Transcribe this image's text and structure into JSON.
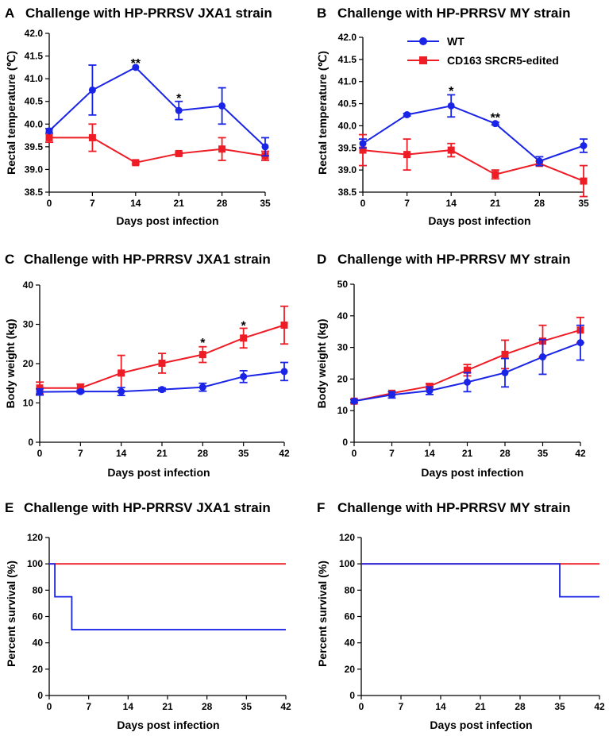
{
  "legend": [
    {
      "name": "WT",
      "color": "#1a24e6",
      "marker": "circle"
    },
    {
      "name": "CD163 SRCR5-edited",
      "color": "#ee1c25",
      "marker": "square"
    }
  ],
  "chart_data": [
    {
      "id": "A",
      "letter": "A",
      "type": "line",
      "title": "Challenge with HP-PRRSV JXA1 strain",
      "xlabel": "Days post infection",
      "ylabel": "Rectal temperature (℃)",
      "x": [
        0,
        7,
        14,
        21,
        28,
        35
      ],
      "xticks": [
        0,
        7,
        14,
        21,
        28,
        35
      ],
      "yticks": [
        38.5,
        39.0,
        39.5,
        40.0,
        40.5,
        41.0,
        41.5,
        42.0
      ],
      "ytick_labels": [
        "38.5",
        "39.0",
        "39.5",
        "40.0",
        "40.5",
        "41.0",
        "41.5",
        "42.0"
      ],
      "xlim": [
        0,
        35
      ],
      "ylim": [
        38.5,
        42.0
      ],
      "series": [
        {
          "name": "WT",
          "values": [
            39.85,
            40.75,
            41.25,
            40.3,
            40.4,
            39.5
          ],
          "errors": [
            0.05,
            0.55,
            0.0,
            0.2,
            0.4,
            0.2
          ]
        },
        {
          "name": "CD163 SRCR5-edited",
          "values": [
            39.7,
            39.7,
            39.15,
            39.35,
            39.45,
            39.3
          ],
          "errors": [
            0.1,
            0.3,
            0.03,
            0.03,
            0.25,
            0.1
          ]
        }
      ],
      "annotations": [
        {
          "x": 14,
          "y": 41.35,
          "text": "**"
        },
        {
          "x": 21,
          "y": 40.58,
          "text": "*"
        }
      ]
    },
    {
      "id": "B",
      "letter": "B",
      "type": "line",
      "title": "Challenge with HP-PRRSV MY strain",
      "xlabel": "Days post infection",
      "ylabel": "Rectal temperature (℃)",
      "x": [
        0,
        7,
        14,
        21,
        28,
        35
      ],
      "xticks": [
        0,
        7,
        14,
        21,
        28,
        35
      ],
      "yticks": [
        38.5,
        39.0,
        39.5,
        40.0,
        40.5,
        41.0,
        41.5,
        42.0
      ],
      "ytick_labels": [
        "38.5",
        "39.0",
        "39.5",
        "40.0",
        "40.5",
        "41.0",
        "41.5",
        "42.0"
      ],
      "xlim": [
        0,
        35
      ],
      "ylim": [
        38.5,
        42.0
      ],
      "series": [
        {
          "name": "WT",
          "values": [
            39.6,
            40.25,
            40.45,
            40.05,
            39.2,
            39.55
          ],
          "errors": [
            0.1,
            0.03,
            0.25,
            0.03,
            0.1,
            0.15
          ]
        },
        {
          "name": "CD163 SRCR5-edited",
          "values": [
            39.45,
            39.35,
            39.45,
            38.9,
            39.15,
            38.75
          ],
          "errors": [
            0.35,
            0.35,
            0.15,
            0.1,
            0.05,
            0.35
          ]
        }
      ],
      "annotations": [
        {
          "x": 14,
          "y": 40.8,
          "text": "*"
        },
        {
          "x": 21,
          "y": 40.2,
          "text": "**"
        }
      ]
    },
    {
      "id": "C",
      "letter": "C",
      "type": "line",
      "title": "Challenge with HP-PRRSV JXA1 strain",
      "xlabel": "Days post infection",
      "ylabel": "Body weight (kg)",
      "x": [
        0,
        7,
        14,
        21,
        28,
        35,
        42
      ],
      "xticks": [
        0,
        7,
        14,
        21,
        28,
        35,
        42
      ],
      "yticks": [
        0,
        10,
        20,
        30,
        40
      ],
      "ytick_labels": [
        "0",
        "10",
        "20",
        "30",
        "40"
      ],
      "xlim": [
        0,
        42
      ],
      "ylim": [
        0,
        40
      ],
      "series": [
        {
          "name": "WT",
          "values": [
            12.8,
            12.9,
            12.9,
            13.4,
            14.0,
            16.7,
            18.0
          ],
          "errors": [
            0.8,
            0.3,
            1.0,
            0.4,
            1.0,
            1.5,
            2.3
          ]
        },
        {
          "name": "CD163 SRCR5-edited",
          "values": [
            13.8,
            13.8,
            17.6,
            20.1,
            22.3,
            26.5,
            29.8
          ],
          "errors": [
            1.5,
            1.0,
            4.5,
            2.5,
            2.0,
            2.5,
            4.8
          ]
        }
      ],
      "annotations": [
        {
          "x": 28,
          "y": 25.5,
          "text": "*"
        },
        {
          "x": 35,
          "y": 29.8,
          "text": "*"
        }
      ]
    },
    {
      "id": "D",
      "letter": "D",
      "type": "line",
      "title": "Challenge with HP-PRRSV MY strain",
      "xlabel": "Days post infection",
      "ylabel": "Body weight (kg)",
      "x": [
        0,
        7,
        14,
        21,
        28,
        35,
        42
      ],
      "xticks": [
        0,
        7,
        14,
        21,
        28,
        35,
        42
      ],
      "yticks": [
        0,
        10,
        20,
        30,
        40,
        50
      ],
      "ytick_labels": [
        "0",
        "10",
        "20",
        "30",
        "40",
        "50"
      ],
      "xlim": [
        0,
        42
      ],
      "ylim": [
        0,
        50
      ],
      "series": [
        {
          "name": "WT",
          "values": [
            13.0,
            15.0,
            16.3,
            19.0,
            22.0,
            27.0,
            31.5
          ],
          "errors": [
            0.5,
            1.0,
            1.2,
            3.0,
            4.5,
            5.5,
            5.5
          ]
        },
        {
          "name": "CD163 SRCR5-edited",
          "values": [
            13.0,
            15.5,
            17.7,
            22.8,
            27.8,
            32.0,
            35.5
          ],
          "errors": [
            0.5,
            0.5,
            0.8,
            1.8,
            4.5,
            5.0,
            4.0
          ]
        }
      ],
      "annotations": []
    },
    {
      "id": "E",
      "letter": "E",
      "type": "step",
      "title": "Challenge with HP-PRRSV JXA1 strain",
      "xlabel": "Days post infection",
      "ylabel": "Percent survival (%)",
      "xticks": [
        0,
        7,
        14,
        21,
        28,
        35,
        42
      ],
      "yticks": [
        0,
        20,
        40,
        60,
        80,
        100,
        120
      ],
      "ytick_labels": [
        "0",
        "20",
        "40",
        "60",
        "80",
        "100",
        "120"
      ],
      "xlim": [
        0,
        42
      ],
      "ylim": [
        0,
        120
      ],
      "series": [
        {
          "name": "WT",
          "x": [
            0,
            1,
            1,
            4,
            4,
            42
          ],
          "values": [
            100,
            100,
            75,
            75,
            50,
            50
          ]
        },
        {
          "name": "CD163 SRCR5-edited",
          "x": [
            0,
            42
          ],
          "values": [
            100,
            100
          ]
        }
      ],
      "annotations": []
    },
    {
      "id": "F",
      "letter": "F",
      "type": "step",
      "title": "Challenge with HP-PRRSV MY strain",
      "xlabel": "Days post infection",
      "ylabel": "Percent survival (%)",
      "xticks": [
        0,
        7,
        14,
        21,
        28,
        35,
        42
      ],
      "yticks": [
        0,
        20,
        40,
        60,
        80,
        100,
        120
      ],
      "ytick_labels": [
        "0",
        "20",
        "40",
        "60",
        "80",
        "100",
        "120"
      ],
      "xlim": [
        0,
        42
      ],
      "ylim": [
        0,
        120
      ],
      "series": [
        {
          "name": "WT",
          "x": [
            0,
            35,
            35,
            42
          ],
          "values": [
            100,
            100,
            75,
            75
          ]
        },
        {
          "name": "CD163 SRCR5-edited",
          "x": [
            0,
            42
          ],
          "values": [
            100,
            100
          ]
        }
      ],
      "annotations": []
    }
  ]
}
